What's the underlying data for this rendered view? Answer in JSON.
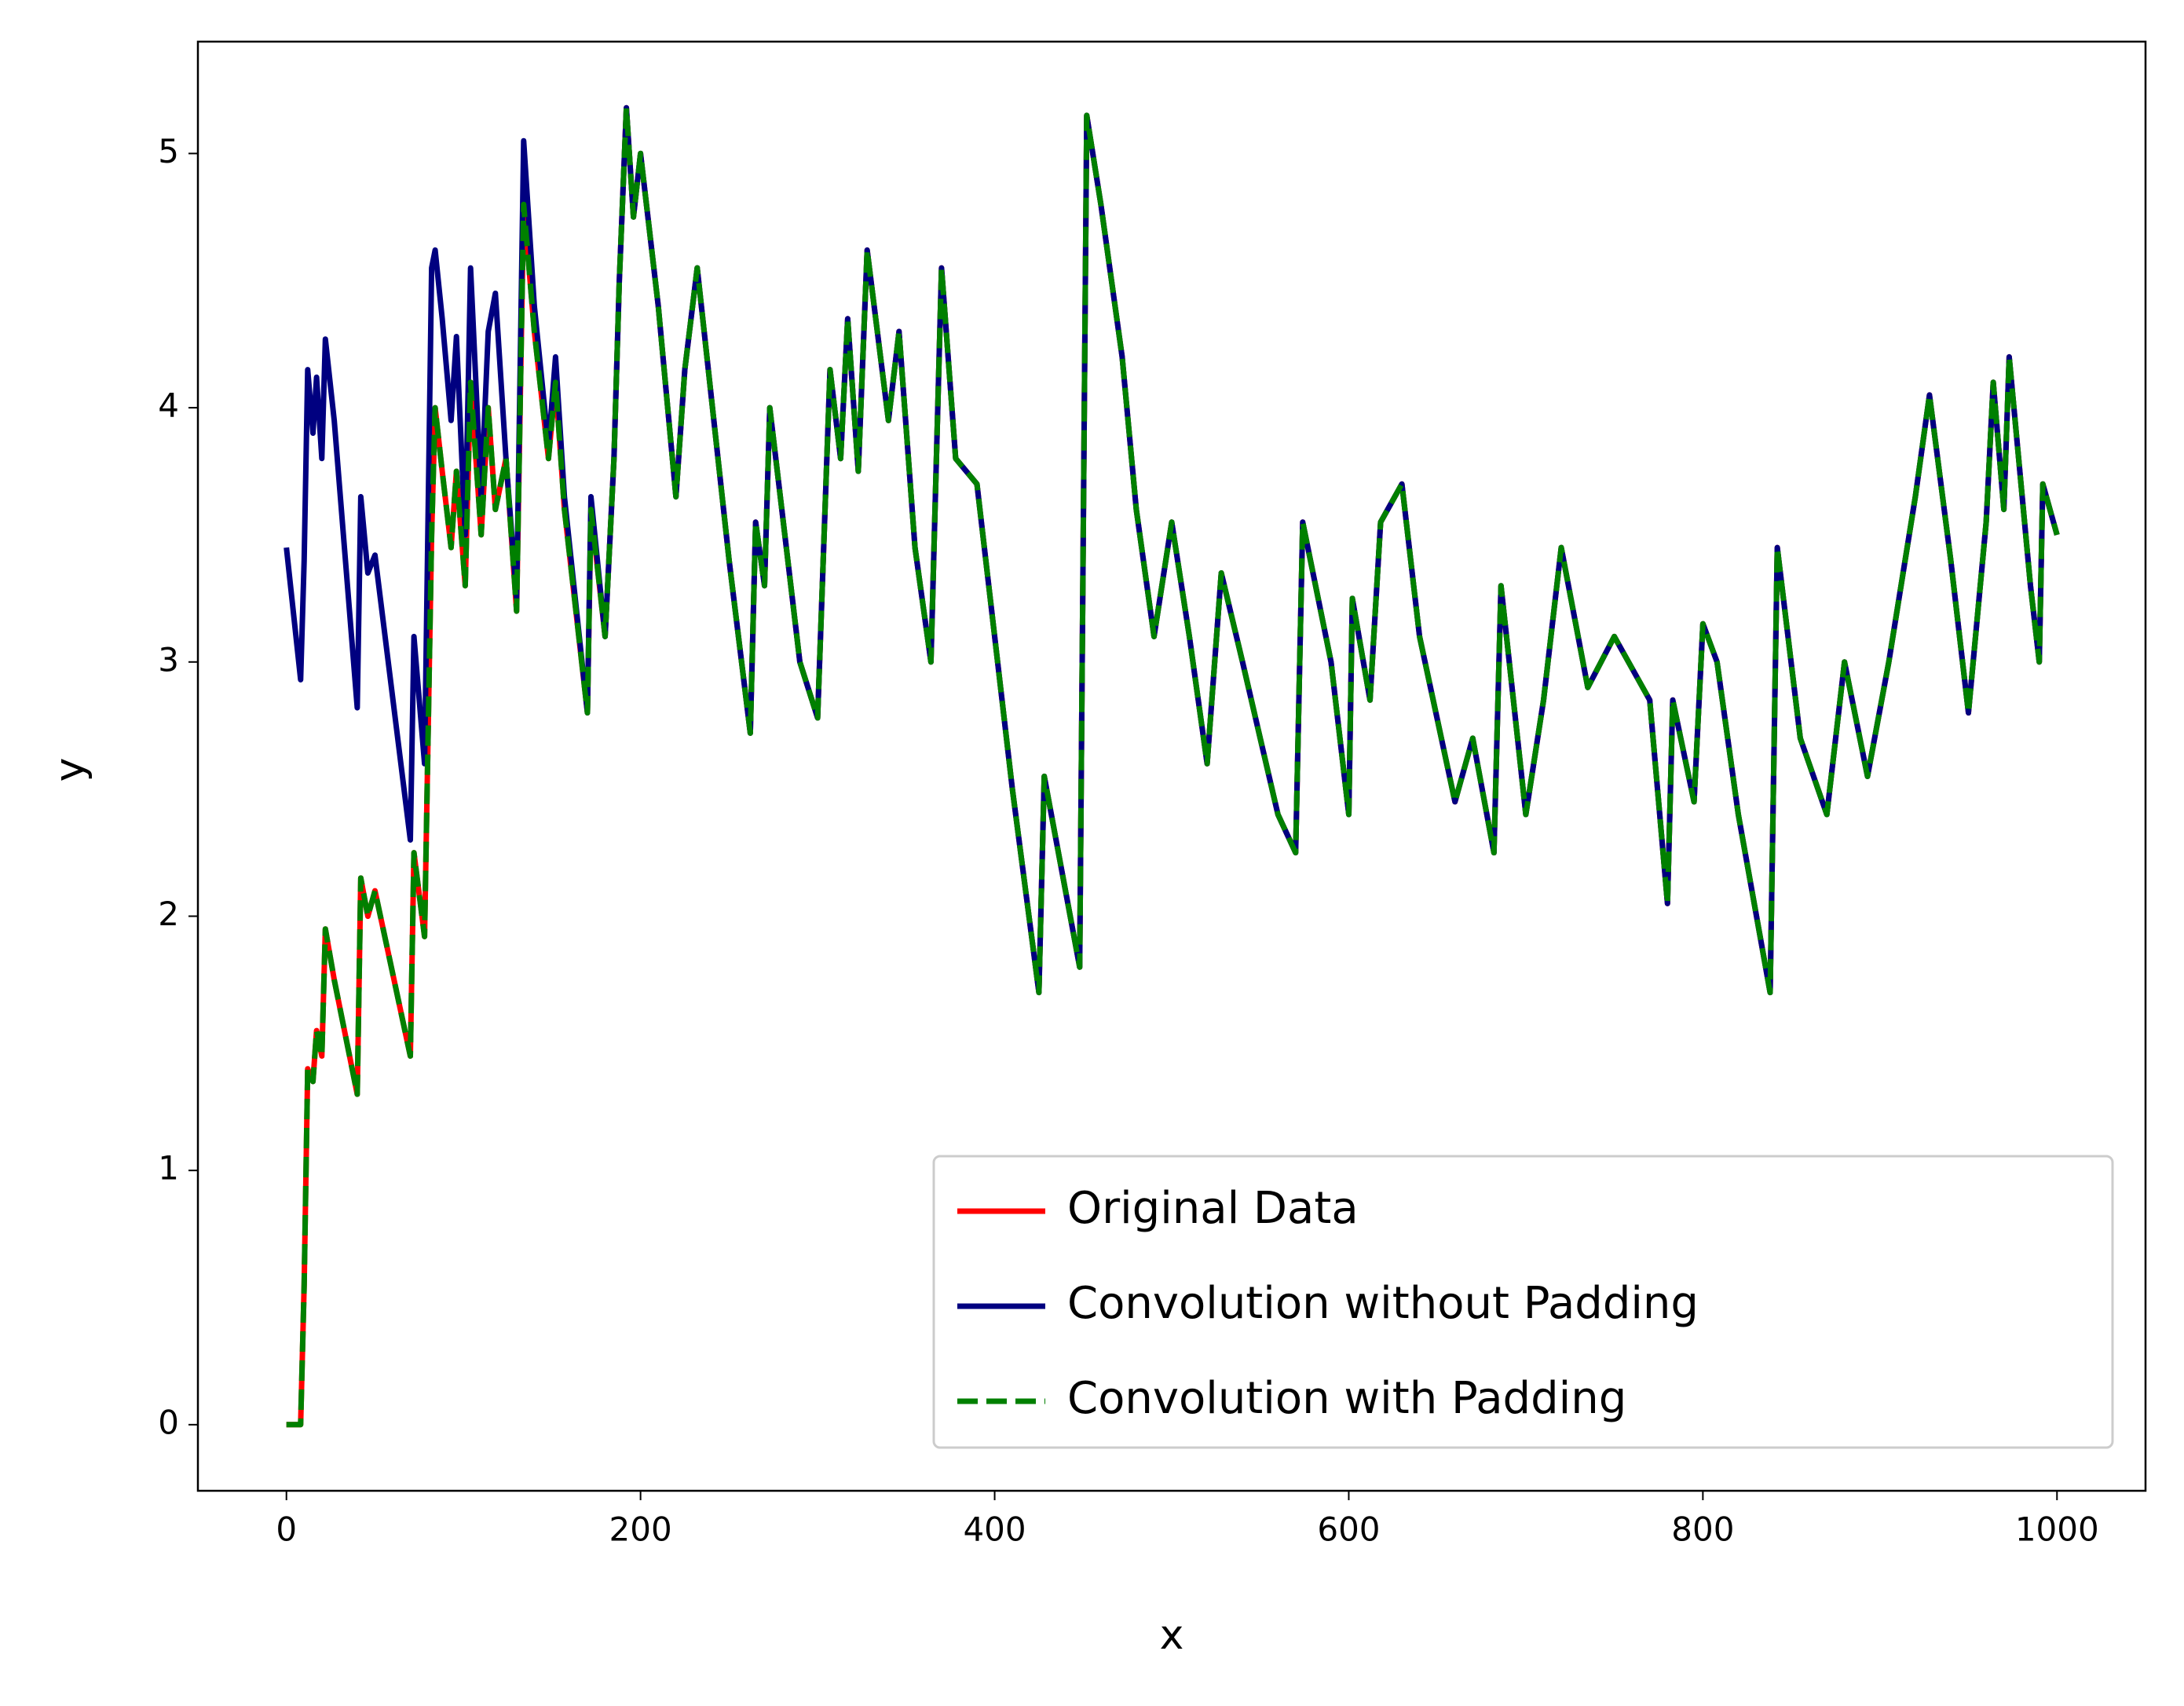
{
  "chart_data": {
    "type": "line",
    "xlabel": "x",
    "ylabel": "y",
    "x": [
      0,
      8,
      10,
      12,
      15,
      17,
      20,
      22,
      27,
      40,
      42,
      46,
      50,
      70,
      72,
      78,
      82,
      84,
      88,
      93,
      96,
      101,
      104,
      110,
      114,
      118,
      124,
      130,
      134,
      140,
      148,
      152,
      157,
      170,
      172,
      180,
      185,
      188,
      192,
      196,
      200,
      210,
      220,
      225,
      232,
      250,
      262,
      265,
      270,
      273,
      290,
      300,
      307,
      313,
      317,
      323,
      328,
      340,
      346,
      355,
      364,
      370,
      378,
      390,
      410,
      425,
      428,
      448,
      452,
      460,
      472,
      480,
      490,
      500,
      510,
      520,
      528,
      540,
      550,
      560,
      570,
      574,
      590,
      600,
      602,
      612,
      618,
      630,
      640,
      660,
      670,
      682,
      686,
      700,
      710,
      720,
      735,
      750,
      770,
      780,
      783,
      795,
      800,
      808,
      820,
      838,
      842,
      855,
      870,
      880,
      893,
      905,
      920,
      928,
      940,
      950,
      960,
      964,
      970,
      973,
      985,
      990,
      992,
      1000
    ],
    "series": [
      {
        "name": "Original Data",
        "color": "#ff0000",
        "dashed": false,
        "values": [
          0,
          0,
          0.55,
          1.4,
          1.35,
          1.55,
          1.45,
          1.95,
          1.75,
          1.3,
          2.15,
          2.0,
          2.1,
          1.45,
          2.25,
          1.92,
          3.5,
          4.0,
          3.75,
          3.45,
          3.75,
          3.3,
          4.1,
          3.5,
          4.0,
          3.6,
          3.8,
          3.2,
          4.8,
          4.3,
          3.8,
          4.1,
          3.6,
          2.8,
          3.6,
          3.1,
          3.8,
          4.5,
          5.18,
          4.75,
          5.0,
          4.4,
          3.65,
          4.15,
          4.55,
          3.4,
          2.72,
          3.55,
          3.3,
          4.0,
          3.0,
          2.78,
          4.15,
          3.8,
          4.35,
          3.75,
          4.62,
          3.95,
          4.3,
          3.45,
          3.0,
          4.55,
          3.8,
          3.7,
          2.5,
          1.7,
          2.55,
          1.8,
          5.15,
          4.8,
          4.2,
          3.6,
          3.1,
          3.55,
          3.1,
          2.6,
          3.35,
          3.0,
          2.7,
          2.4,
          2.25,
          3.55,
          3.0,
          2.4,
          3.25,
          2.85,
          3.55,
          3.7,
          3.1,
          2.45,
          2.7,
          2.25,
          3.3,
          2.4,
          2.85,
          3.45,
          2.9,
          3.1,
          2.85,
          2.05,
          2.85,
          2.45,
          3.15,
          3.0,
          2.4,
          1.7,
          3.45,
          2.7,
          2.4,
          3.0,
          2.55,
          3.0,
          3.65,
          4.05,
          3.4,
          2.8,
          3.55,
          4.1,
          3.6,
          4.2,
          3.3,
          3.0,
          3.7,
          3.5
        ]
      },
      {
        "name": "Convolution without Padding",
        "color": "#000080",
        "dashed": false,
        "values": [
          3.45,
          2.93,
          3.4,
          4.15,
          3.9,
          4.12,
          3.8,
          4.27,
          3.95,
          2.82,
          3.65,
          3.35,
          3.42,
          2.3,
          3.1,
          2.6,
          4.55,
          4.62,
          4.35,
          3.95,
          4.28,
          3.5,
          4.55,
          3.65,
          4.3,
          4.45,
          3.8,
          3.25,
          5.05,
          4.4,
          3.85,
          4.2,
          3.65,
          2.8,
          3.65,
          3.1,
          3.8,
          4.5,
          5.18,
          4.75,
          5.0,
          4.4,
          3.65,
          4.15,
          4.55,
          3.4,
          2.72,
          3.55,
          3.3,
          4.0,
          3.0,
          2.78,
          4.15,
          3.8,
          4.35,
          3.75,
          4.62,
          3.95,
          4.3,
          3.45,
          3.0,
          4.55,
          3.8,
          3.7,
          2.5,
          1.7,
          2.55,
          1.8,
          5.15,
          4.8,
          4.2,
          3.6,
          3.1,
          3.55,
          3.1,
          2.6,
          3.35,
          3.0,
          2.7,
          2.4,
          2.25,
          3.55,
          3.0,
          2.4,
          3.25,
          2.85,
          3.55,
          3.7,
          3.1,
          2.45,
          2.7,
          2.25,
          3.3,
          2.4,
          2.85,
          3.45,
          2.9,
          3.1,
          2.85,
          2.05,
          2.85,
          2.45,
          3.15,
          3.0,
          2.4,
          1.7,
          3.45,
          2.7,
          2.4,
          3.0,
          2.55,
          3.0,
          3.65,
          4.05,
          3.4,
          2.8,
          3.55,
          4.1,
          3.6,
          4.2,
          3.3,
          3.0,
          3.7,
          3.5
        ]
      },
      {
        "name": "Convolution with Padding",
        "color": "#008000",
        "dashed": true,
        "values": [
          0,
          0,
          0.55,
          1.4,
          1.35,
          1.55,
          1.45,
          1.95,
          1.75,
          1.3,
          2.15,
          2.0,
          2.1,
          1.45,
          2.25,
          1.92,
          3.5,
          4.0,
          3.75,
          3.45,
          3.75,
          3.3,
          4.1,
          3.5,
          4.0,
          3.6,
          3.8,
          3.2,
          4.8,
          4.3,
          3.8,
          4.1,
          3.6,
          2.8,
          3.6,
          3.1,
          3.8,
          4.5,
          5.18,
          4.75,
          5.0,
          4.4,
          3.65,
          4.15,
          4.55,
          3.4,
          2.72,
          3.55,
          3.3,
          4.0,
          3.0,
          2.78,
          4.15,
          3.8,
          4.35,
          3.75,
          4.62,
          3.95,
          4.3,
          3.45,
          3.0,
          4.55,
          3.8,
          3.7,
          2.5,
          1.7,
          2.55,
          1.8,
          5.15,
          4.8,
          4.2,
          3.6,
          3.1,
          3.55,
          3.1,
          2.6,
          3.35,
          3.0,
          2.7,
          2.4,
          2.25,
          3.55,
          3.0,
          2.4,
          3.25,
          2.85,
          3.55,
          3.7,
          3.1,
          2.45,
          2.7,
          2.25,
          3.3,
          2.4,
          2.85,
          3.45,
          2.9,
          3.1,
          2.85,
          2.05,
          2.85,
          2.45,
          3.15,
          3.0,
          2.4,
          1.7,
          3.45,
          2.7,
          2.4,
          3.0,
          2.55,
          3.0,
          3.65,
          4.05,
          3.4,
          2.8,
          3.55,
          4.1,
          3.6,
          4.2,
          3.3,
          3.0,
          3.7,
          3.5
        ]
      }
    ],
    "xlim": [
      -50,
      1050
    ],
    "xticks": [
      0,
      200,
      400,
      600,
      800,
      1000
    ],
    "ylim": [
      -0.26,
      5.44
    ],
    "yticks": [
      0,
      1,
      2,
      3,
      4,
      5
    ],
    "grid": false,
    "legend": "lower right"
  }
}
